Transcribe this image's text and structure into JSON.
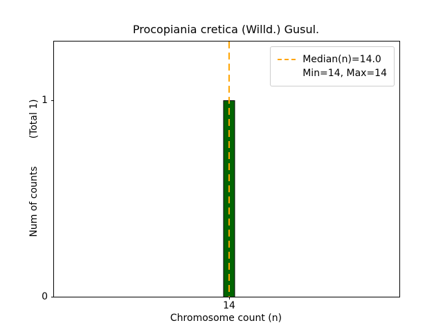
{
  "chart_data": {
    "type": "bar",
    "title": "Procopiania cretica (Willd.) Gusul.",
    "xlabel": "Chromosome count (n)",
    "ylabel": "Num of counts",
    "ylabel_total": "(Total 1)",
    "categories": [
      "14"
    ],
    "values": [
      1
    ],
    "x": [
      14
    ],
    "yticks": [
      0,
      1
    ],
    "ylim": [
      0,
      1.3
    ],
    "grid": false,
    "bar_color": "#006400",
    "bar_edge_color": "#000000",
    "median_line": {
      "x": 14,
      "color": "#FFA500",
      "style": "dashed"
    },
    "legend": {
      "position": "upper right",
      "entries": [
        "Median(n)=14.0",
        "Min=14, Max=14"
      ]
    }
  }
}
